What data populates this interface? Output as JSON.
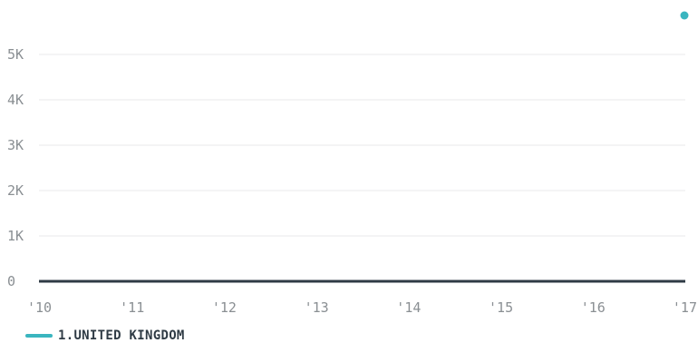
{
  "chart_data": {
    "type": "line",
    "x": [
      "'10",
      "'11",
      "'12",
      "'13",
      "'14",
      "'15",
      "'16",
      "'17"
    ],
    "series": [
      {
        "name": "1.UNITED KINGDOM",
        "color": "#3ab5bf",
        "values": [
          0,
          0,
          0,
          0,
          0,
          0,
          0,
          0
        ]
      }
    ],
    "yticks": [
      "0",
      "1K",
      "2K",
      "3K",
      "4K",
      "5K"
    ],
    "ylim": [
      0,
      5000
    ],
    "grid": true,
    "legend_position": "bottom-left"
  },
  "colors": {
    "series_1": "#3ab5bf",
    "axis_line": "#2f3b45",
    "grid": "#e8eaeb",
    "tick_text": "#8a8f93"
  }
}
